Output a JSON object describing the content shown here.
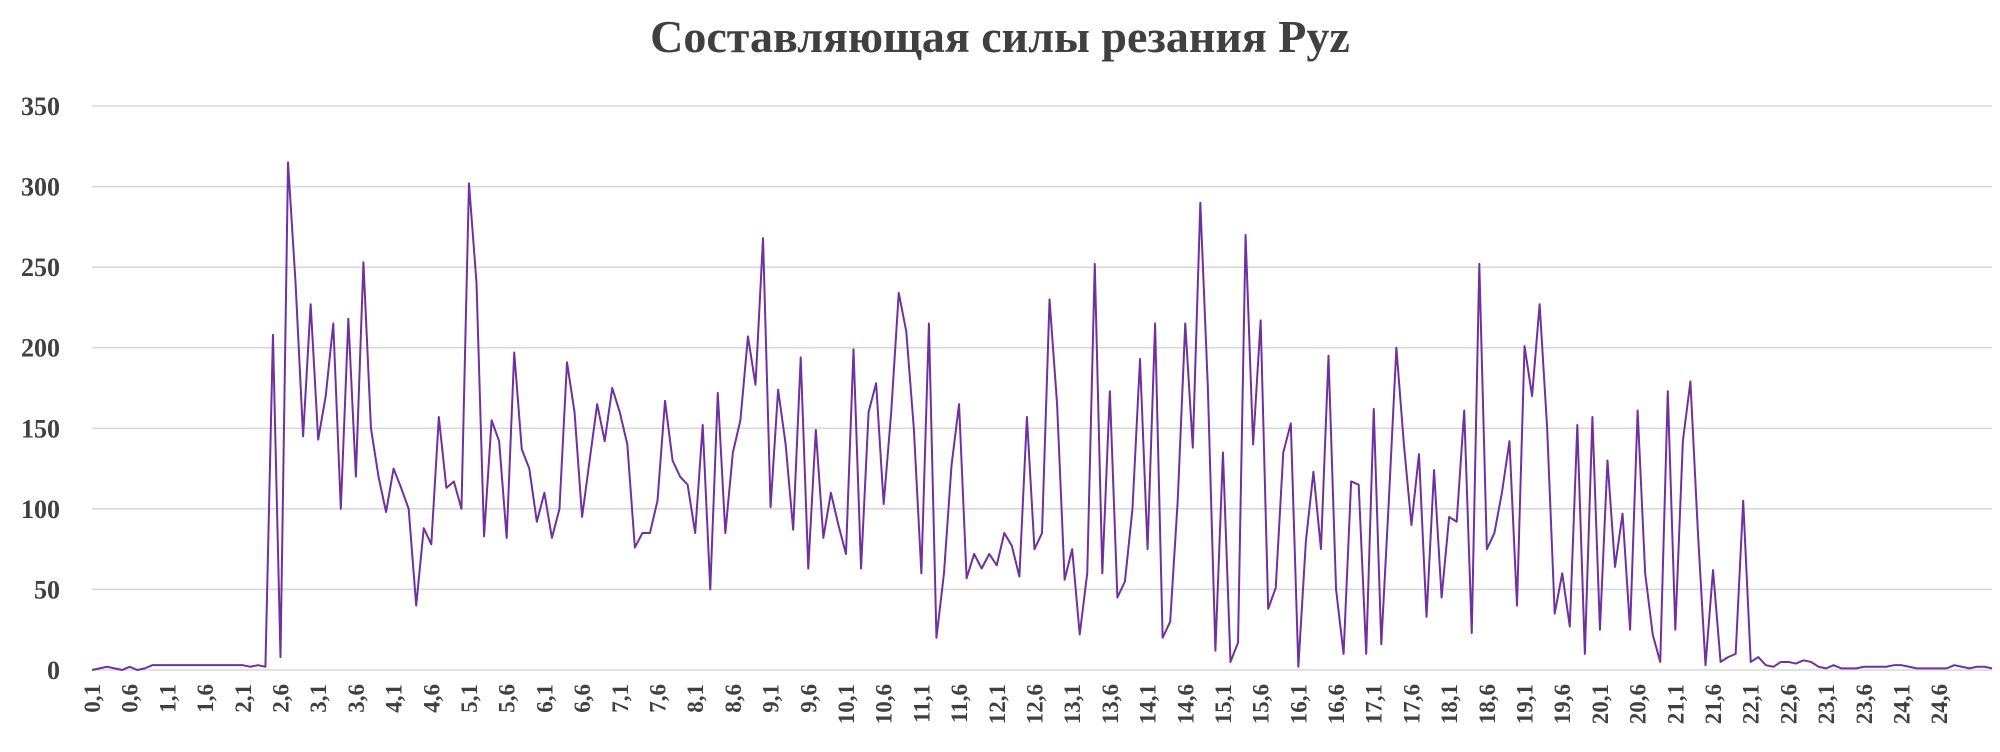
{
  "chart_data": {
    "type": "line",
    "title": "Составляющая силы резания Pyz",
    "xlabel": "",
    "ylabel": "",
    "ylim": [
      0,
      350
    ],
    "yticks": [
      0,
      50,
      100,
      150,
      200,
      250,
      300,
      350
    ],
    "grid": true,
    "legend": "none",
    "x_start": 0.1,
    "x_step": 0.1,
    "x_tick_labels": [
      "0,1",
      "0,6",
      "1,1",
      "1,6",
      "2,1",
      "2,6",
      "3,1",
      "3,6",
      "4,1",
      "4,6",
      "5,1",
      "5,6",
      "6,1",
      "6,6",
      "7,1",
      "7,6",
      "8,1",
      "8,6",
      "9,1",
      "9,6",
      "10,1",
      "10,6",
      "11,1",
      "11,6",
      "12,1",
      "12,6",
      "13,1",
      "13,6",
      "14,1",
      "14,6",
      "15,1",
      "15,6",
      "16,1",
      "16,6",
      "17,1",
      "17,6",
      "18,1",
      "18,6",
      "19,1",
      "19,6",
      "20,1",
      "20,6",
      "21,1",
      "21,6",
      "22,1",
      "22,6",
      "23,1",
      "23,6",
      "24,1",
      "24,6"
    ],
    "series": [
      {
        "color": "#7030a0",
        "values": [
          0,
          1,
          2,
          1,
          0,
          2,
          0,
          1,
          3,
          3,
          3,
          3,
          3,
          3,
          3,
          3,
          3,
          3,
          3,
          3,
          3,
          2,
          3,
          2,
          208,
          8,
          315,
          240,
          145,
          227,
          143,
          170,
          215,
          100,
          218,
          120,
          253,
          150,
          120,
          98,
          125,
          113,
          100,
          40,
          88,
          78,
          157,
          113,
          117,
          100,
          302,
          240,
          83,
          155,
          142,
          82,
          197,
          137,
          125,
          92,
          110,
          82,
          100,
          191,
          160,
          95,
          130,
          165,
          142,
          175,
          160,
          140,
          76,
          85,
          85,
          105,
          167,
          130,
          120,
          115,
          85,
          152,
          50,
          172,
          85,
          135,
          155,
          207,
          177,
          268,
          101,
          174,
          140,
          87,
          194,
          63,
          149,
          82,
          110,
          90,
          72,
          199,
          63,
          160,
          178,
          103,
          160,
          234,
          210,
          150,
          60,
          215,
          20,
          60,
          127,
          165,
          57,
          72,
          63,
          72,
          65,
          85,
          77,
          58,
          157,
          75,
          85,
          230,
          165,
          56,
          75,
          22,
          60,
          252,
          60,
          173,
          45,
          55,
          100,
          193,
          75,
          215,
          20,
          30,
          105,
          215,
          138,
          290,
          175,
          12,
          135,
          5,
          17,
          270,
          140,
          217,
          38,
          51,
          135,
          153,
          2,
          80,
          123,
          75,
          195,
          50,
          10,
          117,
          115,
          10,
          162,
          16,
          105,
          200,
          140,
          90,
          134,
          33,
          124,
          45,
          95,
          92,
          161,
          23,
          252,
          75,
          85,
          110,
          142,
          40,
          201,
          170,
          227,
          150,
          35,
          60,
          27,
          152,
          10,
          157,
          25,
          130,
          64,
          97,
          25,
          161,
          60,
          22,
          5,
          173,
          25,
          142,
          179,
          85,
          3,
          62,
          5,
          8,
          10,
          105,
          5,
          8,
          3,
          2,
          5,
          5,
          4,
          6,
          5,
          2,
          1,
          3,
          1,
          1,
          1,
          2,
          2,
          2,
          2,
          3,
          3,
          2,
          1,
          1,
          1,
          1,
          1,
          3,
          2,
          1,
          2,
          2,
          1
        ]
      }
    ]
  }
}
